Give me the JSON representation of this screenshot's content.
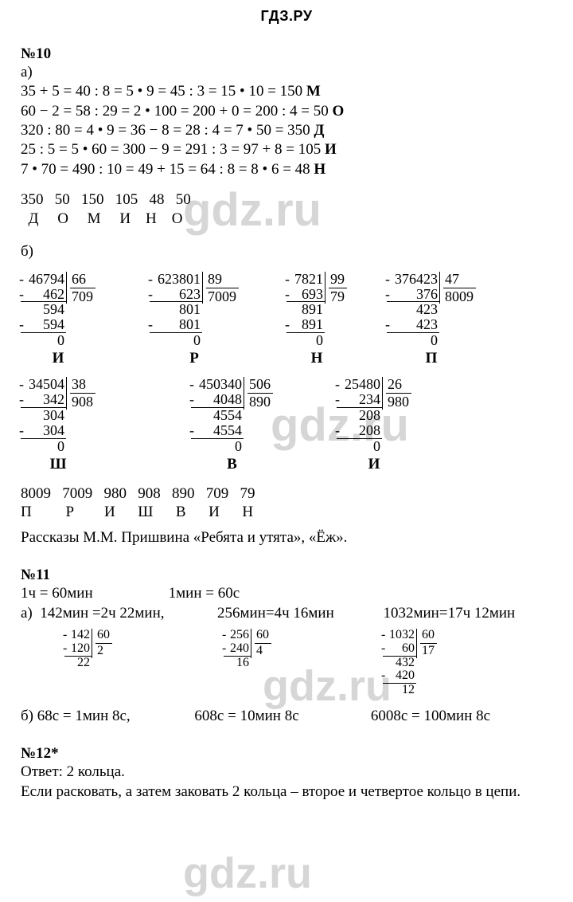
{
  "header": "ГДЗ.РУ",
  "watermark": "gdz.ru",
  "task10": {
    "num": "№10",
    "a_label": "а)",
    "a_lines": [
      "35 + 5 = 40 : 8 = 5 • 9 = 45 : 3 = 15 • 10 = 150 ",
      "60 − 2 = 58 : 29 = 2 • 100 = 200 + 0 = 200 : 4 = 50 ",
      "320 : 80 = 4 • 9 = 36 − 8 = 28 : 4 = 7 • 50 = 350 ",
      "25 : 5 = 5 • 60 = 300 − 9 = 291 : 3 = 97 + 8 = 105 ",
      "7 • 70 = 490 : 10 = 49 + 15 = 64 : 8 = 8 • 6 = 48 "
    ],
    "a_end_letters": [
      "М",
      "О",
      "Д",
      "И",
      "Н"
    ],
    "a_nums_row": "350   50   150   105   48   50",
    "a_letters_row": "  Д     О     М     И    Н    О",
    "b_label": "б)",
    "b_row1": [
      {
        "dividend": "46794",
        "divisor": "66",
        "quot": "709",
        "work": [
          "462",
          "  594",
          "  594",
          "      0"
        ],
        "minus": [
          true,
          false,
          true,
          false
        ],
        "ul": [
          true,
          false,
          true,
          false
        ],
        "letter": "И"
      },
      {
        "dividend": "623801",
        "divisor": "89",
        "quot": "7009",
        "work": [
          "623",
          "     801",
          "     801",
          "         0"
        ],
        "minus": [
          true,
          false,
          true,
          false
        ],
        "ul": [
          true,
          false,
          true,
          false
        ],
        "letter": "Р"
      },
      {
        "dividend": "7821",
        "divisor": "99",
        "quot": "79",
        "work": [
          "693",
          "  891",
          "  891",
          "      0"
        ],
        "minus": [
          true,
          false,
          true,
          false
        ],
        "ul": [
          true,
          false,
          true,
          false
        ],
        "letter": "Н"
      },
      {
        "dividend": "376423",
        "divisor": "47",
        "quot": "8009",
        "work": [
          "376",
          "     423",
          "     423",
          "         0"
        ],
        "minus": [
          true,
          false,
          true,
          false
        ],
        "ul": [
          true,
          false,
          true,
          false
        ],
        "letter": "П"
      }
    ],
    "b_row2": [
      {
        "dividend": "34504",
        "divisor": "38",
        "quot": "908",
        "work": [
          "342",
          "    304",
          "    304",
          "        0"
        ],
        "minus": [
          true,
          false,
          true,
          false
        ],
        "ul": [
          true,
          false,
          true,
          false
        ],
        "letter": "Ш"
      },
      {
        "dividend": "450340",
        "divisor": "506",
        "quot": "890",
        "work": [
          "4048",
          "  4554",
          "  4554",
          "         0"
        ],
        "minus": [
          true,
          false,
          true,
          false
        ],
        "ul": [
          true,
          false,
          true,
          false
        ],
        "letter": "В"
      },
      {
        "dividend": "25480",
        "divisor": "26",
        "quot": "980",
        "work": [
          "234",
          "  208",
          "  208",
          "       0"
        ],
        "minus": [
          true,
          false,
          true,
          false
        ],
        "ul": [
          true,
          false,
          true,
          false
        ],
        "letter": "И"
      }
    ],
    "b_nums_row": "8009   7009   980   908   890   709   79",
    "b_letters_row": "П         Р        И      Ш      В      И      Н",
    "b_footer": "Рассказы М.М. Пришвина «Ребята и утята», «Ёж»."
  },
  "task11": {
    "num": "№11",
    "line1": "1ч = 60мин                    1мин = 60с",
    "a_line": "а)  142мин =2ч 22мин,              256мин=4ч 16мин             1032мин=17ч 12мин",
    "divs": [
      {
        "dividend": "142",
        "divisor": "60",
        "quot": "2",
        "work": [
          "120",
          "  22"
        ],
        "minus": [
          true,
          false
        ],
        "ul": [
          true,
          false
        ]
      },
      {
        "dividend": "256",
        "divisor": "60",
        "quot": "4",
        "work": [
          "240",
          "  16"
        ],
        "minus": [
          true,
          false
        ],
        "ul": [
          true,
          false
        ]
      },
      {
        "dividend": "1032",
        "divisor": "60",
        "quot": "17",
        "work": [
          "60",
          "  432",
          "  420",
          "    12"
        ],
        "minus": [
          true,
          false,
          true,
          false
        ],
        "ul": [
          true,
          false,
          true,
          false
        ]
      }
    ],
    "b_line": "б) 68с = 1мин 8с,                 608с = 10мин 8с                   6008с = 100мин 8с"
  },
  "task12": {
    "num": "№12*",
    "l1": "Ответ: 2 кольца.",
    "l2": "Если расковать, а затем заковать 2 кольца – второе и четвертое кольцо в цепи."
  },
  "style": {
    "text_color": "#000000",
    "background": "#ffffff",
    "watermark_color": "rgba(0,0,0,0.16)",
    "font_main": "Times New Roman",
    "font_header": "Arial",
    "header_fontsize": 18,
    "body_fontsize": 19,
    "ld_fontsize": 18,
    "ld_small_fontsize": 16,
    "watermark_fontsize": 58
  }
}
